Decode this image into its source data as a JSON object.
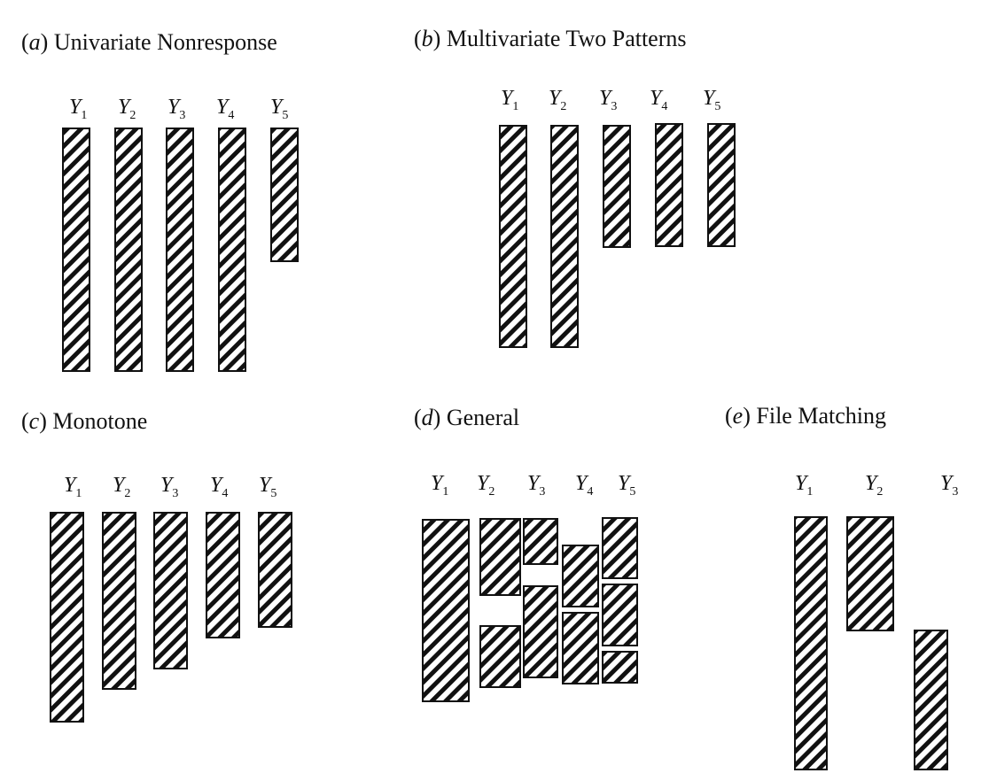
{
  "panels": [
    {
      "letter": "a",
      "title": "Univariate Nonresponse",
      "variables": [
        "Y1",
        "Y2",
        "Y3",
        "Y4",
        "Y5"
      ]
    },
    {
      "letter": "b",
      "title": "Multivariate Two Patterns",
      "variables": [
        "Y1",
        "Y2",
        "Y3",
        "Y4",
        "Y5"
      ]
    },
    {
      "letter": "c",
      "title": "Monotone",
      "variables": [
        "Y1",
        "Y2",
        "Y3",
        "Y4",
        "Y5"
      ]
    },
    {
      "letter": "d",
      "title": "General",
      "variables": [
        "Y1",
        "Y2",
        "Y3",
        "Y4",
        "Y5"
      ]
    },
    {
      "letter": "e",
      "title": "File Matching",
      "variables": [
        "Y1",
        "Y2",
        "Y3"
      ]
    }
  ],
  "style": {
    "stroke": "#111111",
    "hatch": "#111111",
    "background": "#ffffff"
  }
}
